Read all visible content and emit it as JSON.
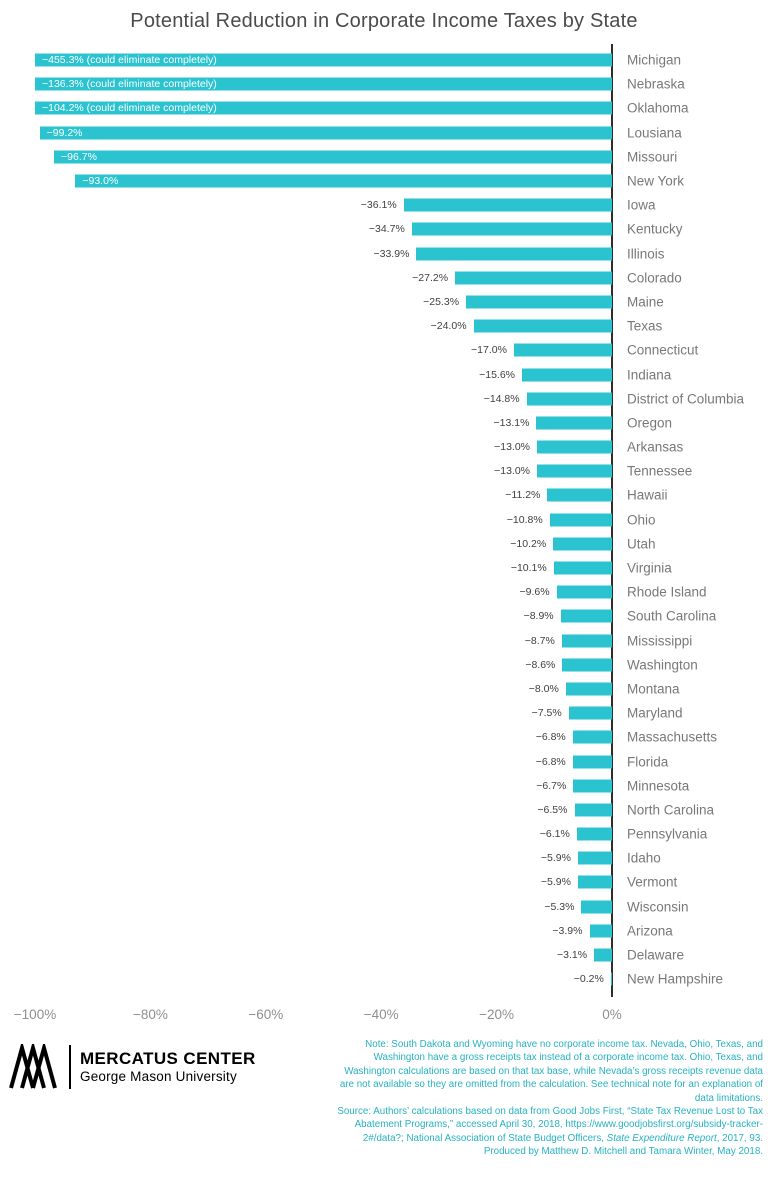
{
  "title": "Potential Reduction in Corporate Income Taxes by State",
  "chart_data": {
    "type": "bar",
    "orientation": "horizontal",
    "title": "Potential Reduction in Corporate Income Taxes by State",
    "xlabel": "",
    "ylabel": "",
    "xlim": [
      -100,
      0
    ],
    "grid": false,
    "legend": false,
    "bar_color": "#2bc3d0",
    "axis_color": "#2e2d2c",
    "layout_hint": "bars extend left from a zero axis on the right; values beyond -100% are clipped at the -100% limit with their labels drawn inside the bar",
    "x_ticks": [
      {
        "label": "−100%",
        "value": -100
      },
      {
        "label": "−80%",
        "value": -80
      },
      {
        "label": "−60%",
        "value": -60
      },
      {
        "label": "−40%",
        "value": -40
      },
      {
        "label": "−20%",
        "value": -20
      },
      {
        "label": "0%",
        "value": 0
      }
    ],
    "bars": [
      {
        "state": "Michigan",
        "value": -455.3,
        "label": "−455.3% (could eliminate completely)",
        "label_inside": true
      },
      {
        "state": "Nebraska",
        "value": -136.3,
        "label": "−136.3% (could eliminate completely)",
        "label_inside": true
      },
      {
        "state": "Oklahoma",
        "value": -104.2,
        "label": "−104.2% (could eliminate completely)",
        "label_inside": true
      },
      {
        "state": "Lousiana",
        "value": -99.2,
        "label": "−99.2%",
        "label_inside": true
      },
      {
        "state": "Missouri",
        "value": -96.7,
        "label": "−96.7%",
        "label_inside": true
      },
      {
        "state": "New York",
        "value": -93.0,
        "label": "−93.0%",
        "label_inside": true
      },
      {
        "state": "Iowa",
        "value": -36.1,
        "label": "−36.1%",
        "label_inside": false
      },
      {
        "state": "Kentucky",
        "value": -34.7,
        "label": "−34.7%",
        "label_inside": false
      },
      {
        "state": "Illinois",
        "value": -33.9,
        "label": "−33.9%",
        "label_inside": false
      },
      {
        "state": "Colorado",
        "value": -27.2,
        "label": "−27.2%",
        "label_inside": false
      },
      {
        "state": "Maine",
        "value": -25.3,
        "label": "−25.3%",
        "label_inside": false
      },
      {
        "state": "Texas",
        "value": -24.0,
        "label": "−24.0%",
        "label_inside": false
      },
      {
        "state": "Connecticut",
        "value": -17.0,
        "label": "−17.0%",
        "label_inside": false
      },
      {
        "state": "Indiana",
        "value": -15.6,
        "label": "−15.6%",
        "label_inside": false
      },
      {
        "state": "District of Columbia",
        "value": -14.8,
        "label": "−14.8%",
        "label_inside": false
      },
      {
        "state": "Oregon",
        "value": -13.1,
        "label": "−13.1%",
        "label_inside": false
      },
      {
        "state": "Arkansas",
        "value": -13.0,
        "label": "−13.0%",
        "label_inside": false
      },
      {
        "state": "Tennessee",
        "value": -13.0,
        "label": "−13.0%",
        "label_inside": false
      },
      {
        "state": "Hawaii",
        "value": -11.2,
        "label": "−11.2%",
        "label_inside": false
      },
      {
        "state": "Ohio",
        "value": -10.8,
        "label": "−10.8%",
        "label_inside": false
      },
      {
        "state": "Utah",
        "value": -10.2,
        "label": "−10.2%",
        "label_inside": false
      },
      {
        "state": "Virginia",
        "value": -10.1,
        "label": "−10.1%",
        "label_inside": false
      },
      {
        "state": "Rhode Island",
        "value": -9.6,
        "label": "−9.6%",
        "label_inside": false
      },
      {
        "state": "South Carolina",
        "value": -8.9,
        "label": "−8.9%",
        "label_inside": false
      },
      {
        "state": "Mississippi",
        "value": -8.7,
        "label": "−8.7%",
        "label_inside": false
      },
      {
        "state": "Washington",
        "value": -8.6,
        "label": "−8.6%",
        "label_inside": false
      },
      {
        "state": "Montana",
        "value": -8.0,
        "label": "−8.0%",
        "label_inside": false
      },
      {
        "state": "Maryland",
        "value": -7.5,
        "label": "−7.5%",
        "label_inside": false
      },
      {
        "state": "Massachusetts",
        "value": -6.8,
        "label": "−6.8%",
        "label_inside": false
      },
      {
        "state": "Florida",
        "value": -6.8,
        "label": "−6.8%",
        "label_inside": false
      },
      {
        "state": "Minnesota",
        "value": -6.7,
        "label": "−6.7%",
        "label_inside": false
      },
      {
        "state": "North Carolina",
        "value": -6.5,
        "label": "−6.5%",
        "label_inside": false
      },
      {
        "state": "Pennsylvania",
        "value": -6.1,
        "label": "−6.1%",
        "label_inside": false
      },
      {
        "state": "Idaho",
        "value": -5.9,
        "label": "−5.9%",
        "label_inside": false
      },
      {
        "state": "Vermont",
        "value": -5.9,
        "label": "−5.9%",
        "label_inside": false
      },
      {
        "state": "Wisconsin",
        "value": -5.3,
        "label": "−5.3%",
        "label_inside": false
      },
      {
        "state": "Arizona",
        "value": -3.9,
        "label": "−3.9%",
        "label_inside": false
      },
      {
        "state": "Delaware",
        "value": -3.1,
        "label": "−3.1%",
        "label_inside": false
      },
      {
        "state": "New Hampshire",
        "value": -0.2,
        "label": "−0.2%",
        "label_inside": false
      }
    ]
  },
  "footer": {
    "logo": {
      "name_top": "MERCATUS CENTER",
      "name_bottom": "George Mason University"
    },
    "notes": [
      {
        "segments": [
          {
            "text": "Note: South Dakota and Wyoming have no corporate income tax. Nevada, Ohio, Texas, and Washington have a gross receipts tax instead of a corporate income tax. Ohio, Texas, and Washington calculations are based on that tax base, while Nevada’s gross receipts revenue data are not available so they are omitted from the calculation. See technical note for an explanation of data limitations.",
            "italic": false
          }
        ]
      },
      {
        "segments": [
          {
            "text": "Source: Authors’ calculations based on data from Good Jobs First, “State Tax Revenue Lost to Tax Abatement Programs,” accessed April 30, 2018, https://www.goodjobsfirst.org/subsidy-tracker-2#/data?; National Association of State Budget Officers, ",
            "italic": false
          },
          {
            "text": "State Expenditure Report",
            "italic": true
          },
          {
            "text": ", 2017, 93.",
            "italic": false
          }
        ]
      },
      {
        "segments": [
          {
            "text": "Produced by Matthew D. Mitchell and Tamara Winter, May 2018.",
            "italic": false
          }
        ]
      }
    ]
  }
}
